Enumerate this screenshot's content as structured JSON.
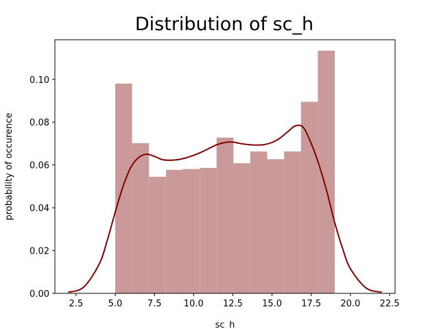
{
  "chart_data": {
    "type": "bar",
    "title": "Distribution of sc_h",
    "xlabel": "sc_h",
    "ylabel": "probability of occurence",
    "xlim": [
      1.15,
      22.85
    ],
    "ylim": [
      0,
      0.1185
    ],
    "xticks": [
      2.5,
      5.0,
      7.5,
      10.0,
      12.5,
      15.0,
      17.5,
      20.0,
      22.5
    ],
    "xtick_labels": [
      "2.5",
      "5.0",
      "7.5",
      "10.0",
      "12.5",
      "15.0",
      "17.5",
      "20.0",
      "22.5"
    ],
    "yticks": [
      0.0,
      0.02,
      0.04,
      0.06,
      0.08,
      0.1
    ],
    "ytick_labels": [
      "0.00",
      "0.02",
      "0.04",
      "0.06",
      "0.08",
      "0.10"
    ],
    "grid": false,
    "histogram": {
      "bin_edges": [
        5.0,
        6.077,
        7.154,
        8.231,
        9.308,
        10.385,
        11.462,
        12.538,
        13.615,
        14.692,
        15.769,
        16.846,
        17.923,
        19.0
      ],
      "values": [
        0.098,
        0.0702,
        0.0545,
        0.0577,
        0.0581,
        0.0586,
        0.0728,
        0.0608,
        0.0663,
        0.0627,
        0.0663,
        0.0895,
        0.1134
      ],
      "color": "#c99a99"
    },
    "kde": {
      "x": [
        2.0,
        3.0,
        4.0,
        4.5,
        5.0,
        5.5,
        6.0,
        6.5,
        7.0,
        7.5,
        8.0,
        8.5,
        9.0,
        9.5,
        10.0,
        10.5,
        11.0,
        11.5,
        12.0,
        12.5,
        13.0,
        13.5,
        14.0,
        14.5,
        15.0,
        15.5,
        16.0,
        16.5,
        17.0,
        17.5,
        18.0,
        18.5,
        19.0,
        19.5,
        20.0,
        21.0,
        22.0
      ],
      "y": [
        0.0005,
        0.003,
        0.014,
        0.025,
        0.038,
        0.05,
        0.059,
        0.0635,
        0.065,
        0.064,
        0.0625,
        0.0622,
        0.0625,
        0.0633,
        0.0645,
        0.066,
        0.0678,
        0.0695,
        0.0705,
        0.0707,
        0.07,
        0.0695,
        0.0693,
        0.0695,
        0.0705,
        0.0725,
        0.0755,
        0.0783,
        0.0775,
        0.07,
        0.06,
        0.0475,
        0.033,
        0.021,
        0.0115,
        0.0025,
        0.0005
      ],
      "color": "#800000"
    }
  }
}
